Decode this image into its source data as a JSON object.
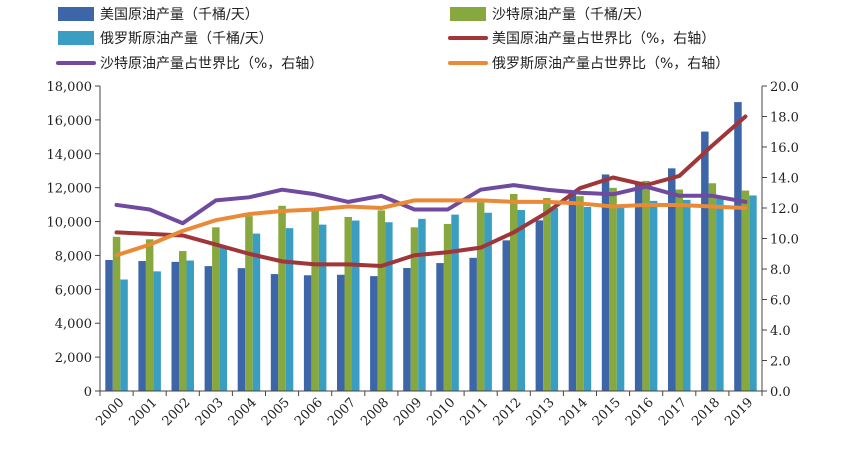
{
  "colors": {
    "us_prod": "#3c66a8",
    "saudi_prod": "#86a83e",
    "russia_prod": "#3a9ec2",
    "us_share": "#a0353a",
    "saudi_share": "#6f4a9e",
    "russia_share": "#ea8a36",
    "axis": "#444444"
  },
  "chart_data": {
    "type": "bar",
    "categories": [
      "2000",
      "2001",
      "2002",
      "2003",
      "2004",
      "2005",
      "2006",
      "2007",
      "2008",
      "2009",
      "2010",
      "2011",
      "2012",
      "2013",
      "2014",
      "2015",
      "2016",
      "2017",
      "2018",
      "2019"
    ],
    "y_left": {
      "min": 0,
      "max": 18000,
      "step": 2000,
      "tick_labels": [
        "0",
        "2,000",
        "4,000",
        "6,000",
        "8,000",
        "10,000",
        "12,000",
        "14,000",
        "16,000",
        "18,000"
      ]
    },
    "y_right": {
      "min": 0,
      "max": 20,
      "step": 2,
      "tick_labels": [
        "0.0",
        "2.0",
        "4.0",
        "6.0",
        "8.0",
        "10.0",
        "12.0",
        "14.0",
        "16.0",
        "18.0",
        "20.0"
      ]
    },
    "grid": false,
    "legend_position": "top",
    "bar_series": [
      {
        "name": "美国原油产量（千桶/天）",
        "color_key": "us_prod",
        "values": [
          7730,
          7670,
          7620,
          7370,
          7250,
          6900,
          6830,
          6860,
          6780,
          7260,
          7550,
          7860,
          8890,
          10070,
          11780,
          12780,
          12350,
          13140,
          15310,
          17050
        ]
      },
      {
        "name": "沙特原油产量（千桶/天）",
        "color_key": "saudi_prod",
        "values": [
          9100,
          8950,
          8260,
          9660,
          10320,
          10930,
          10670,
          10270,
          10660,
          9660,
          9860,
          11140,
          11630,
          11390,
          11500,
          11990,
          12400,
          11890,
          12260,
          11830
        ]
      },
      {
        "name": "俄罗斯原油产量（千桶/天）",
        "color_key": "russia_prod",
        "values": [
          6580,
          7060,
          7700,
          8540,
          9290,
          9610,
          9820,
          10060,
          9960,
          10160,
          10410,
          10520,
          10680,
          10810,
          10860,
          11010,
          11220,
          11280,
          11440,
          11540
        ]
      }
    ],
    "line_series": [
      {
        "name": "美国原油产量占世界比（%，右轴）",
        "color_key": "us_share",
        "axis": "right",
        "values": [
          10.4,
          10.3,
          10.2,
          9.6,
          9.0,
          8.5,
          8.3,
          8.3,
          8.2,
          8.9,
          9.1,
          9.4,
          10.4,
          11.7,
          13.3,
          14.0,
          13.5,
          14.1,
          16.1,
          18.0
        ]
      },
      {
        "name": "沙特原油产量占世界比（%，右轴）",
        "color_key": "saudi_share",
        "axis": "right",
        "values": [
          12.2,
          11.9,
          11.0,
          12.5,
          12.7,
          13.2,
          12.9,
          12.4,
          12.8,
          11.9,
          11.9,
          13.2,
          13.5,
          13.2,
          13.0,
          12.9,
          13.4,
          12.8,
          12.8,
          12.4
        ]
      },
      {
        "name": "俄罗斯原油产量占世界比（%，右轴）",
        "color_key": "russia_share",
        "axis": "right",
        "values": [
          8.9,
          9.6,
          10.5,
          11.2,
          11.6,
          11.8,
          11.9,
          12.1,
          12.0,
          12.5,
          12.5,
          12.5,
          12.4,
          12.4,
          12.3,
          12.1,
          12.2,
          12.2,
          12.1,
          12.0
        ]
      }
    ]
  }
}
